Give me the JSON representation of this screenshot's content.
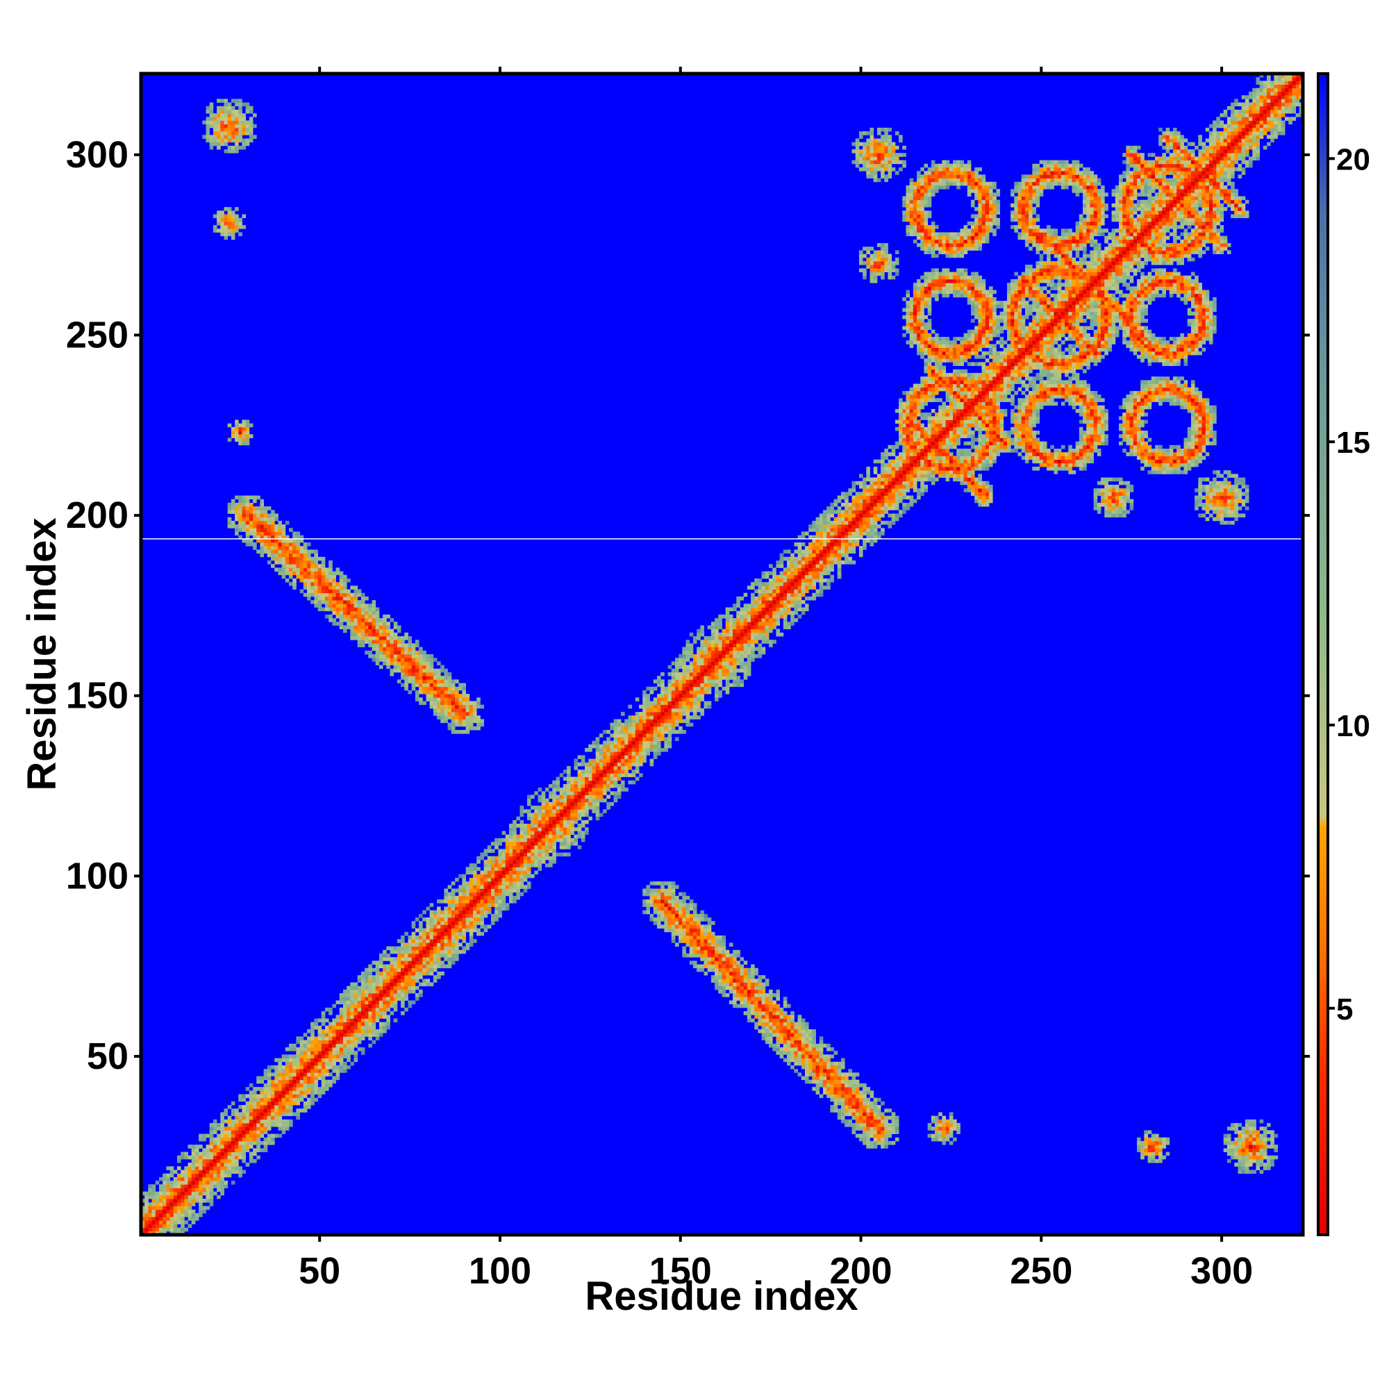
{
  "chart_data": {
    "type": "heatmap",
    "title": "",
    "xlabel": "Residue index",
    "ylabel": "Residue index",
    "n_residues": 322,
    "xlim": [
      1,
      322
    ],
    "ylim": [
      1,
      322
    ],
    "x_ticks": [
      50,
      100,
      150,
      200,
      250,
      300
    ],
    "y_ticks": [
      50,
      100,
      150,
      200,
      250,
      300
    ],
    "grid": false,
    "legend": "colorbar-right",
    "colorbar": {
      "ticks": [
        5,
        10,
        15,
        20
      ],
      "range": [
        1,
        21.5
      ],
      "stops": [
        {
          "value": 1,
          "color": "#e00000"
        },
        {
          "value": 4,
          "color": "#ff3000"
        },
        {
          "value": 6,
          "color": "#ff7000"
        },
        {
          "value": 8.2,
          "color": "#ffa500"
        },
        {
          "value": 8.4,
          "color": "#c8c880"
        },
        {
          "value": 12,
          "color": "#8fb98a"
        },
        {
          "value": 16,
          "color": "#6f9a9a"
        },
        {
          "value": 19,
          "color": "#4a72a8"
        },
        {
          "value": 21.5,
          "color": "#0000ff"
        }
      ]
    },
    "background_value": 21,
    "background_color": "#0000ff",
    "gap_row": 193.5,
    "contact_features": [
      {
        "kind": "band",
        "description": "diagonal self-contact band",
        "from": [
          1,
          1
        ],
        "to": [
          322,
          322
        ],
        "halfwidth": 8
      },
      {
        "kind": "blob",
        "description": "contact cluster",
        "center": [
          100,
          100
        ],
        "halfwidth": 5
      },
      {
        "kind": "blob",
        "description": "contact cluster",
        "center": [
          115,
          115
        ],
        "halfwidth": 10
      },
      {
        "kind": "blob",
        "description": "contact cluster",
        "center": [
          145,
          145
        ],
        "halfwidth": 7
      },
      {
        "kind": "blob",
        "description": "contact cluster",
        "center": [
          160,
          160
        ],
        "halfwidth": 10
      },
      {
        "kind": "band",
        "description": "antiparallel sheet contacts",
        "from": [
          30,
          200
        ],
        "to": [
          90,
          145
        ],
        "halfwidth": 6
      },
      {
        "kind": "band",
        "description": "antiparallel sheet contacts",
        "from": [
          145,
          93
        ],
        "to": [
          205,
          30
        ],
        "halfwidth": 6
      },
      {
        "kind": "blob",
        "description": "contact cluster",
        "center": [
          25,
          308
        ],
        "halfwidth": 8
      },
      {
        "kind": "blob",
        "description": "contact cluster",
        "center": [
          25,
          281
        ],
        "halfwidth": 5
      },
      {
        "kind": "blob",
        "description": "contact cluster",
        "center": [
          28,
          223
        ],
        "halfwidth": 4
      },
      {
        "kind": "blob",
        "description": "contact cluster",
        "center": [
          223,
          30
        ],
        "halfwidth": 5
      },
      {
        "kind": "blob",
        "description": "contact cluster",
        "center": [
          281,
          25
        ],
        "halfwidth": 5
      },
      {
        "kind": "blob",
        "description": "contact cluster",
        "center": [
          308,
          25
        ],
        "halfwidth": 8
      },
      {
        "kind": "blob",
        "description": "contact cluster",
        "center": [
          200,
          200
        ],
        "halfwidth": 8
      },
      {
        "kind": "ring",
        "description": "beta-barrel contact ring",
        "center": [
          225,
          225
        ],
        "halfwidth": 12
      },
      {
        "kind": "ring",
        "description": "beta-barrel contact ring",
        "center": [
          255,
          255
        ],
        "halfwidth": 13
      },
      {
        "kind": "ring",
        "description": "beta-barrel contact ring",
        "center": [
          285,
          285
        ],
        "halfwidth": 12
      },
      {
        "kind": "ring",
        "description": "beta-barrel contact ring",
        "center": [
          225,
          285
        ],
        "halfwidth": 10
      },
      {
        "kind": "ring",
        "description": "beta-barrel contact ring",
        "center": [
          285,
          225
        ],
        "halfwidth": 10
      },
      {
        "kind": "ring",
        "description": "beta-barrel contact ring",
        "center": [
          225,
          255
        ],
        "halfwidth": 10
      },
      {
        "kind": "ring",
        "description": "beta-barrel contact ring",
        "center": [
          255,
          225
        ],
        "halfwidth": 10
      },
      {
        "kind": "ring",
        "description": "beta-barrel contact ring",
        "center": [
          255,
          285
        ],
        "halfwidth": 10
      },
      {
        "kind": "ring",
        "description": "beta-barrel contact ring",
        "center": [
          285,
          255
        ],
        "halfwidth": 10
      },
      {
        "kind": "blob",
        "description": "contact cluster",
        "center": [
          205,
          300
        ],
        "halfwidth": 8
      },
      {
        "kind": "blob",
        "description": "contact cluster",
        "center": [
          300,
          205
        ],
        "halfwidth": 8
      },
      {
        "kind": "blob",
        "description": "contact cluster",
        "center": [
          205,
          270
        ],
        "halfwidth": 6
      },
      {
        "kind": "blob",
        "description": "contact cluster",
        "center": [
          270,
          205
        ],
        "halfwidth": 6
      },
      {
        "kind": "band",
        "description": "hairpin contacts",
        "from": [
          215,
          225
        ],
        "to": [
          235,
          205
        ],
        "halfwidth": 3
      },
      {
        "kind": "band",
        "description": "hairpin contacts",
        "from": [
          220,
          240
        ],
        "to": [
          240,
          220
        ],
        "halfwidth": 3
      },
      {
        "kind": "band",
        "description": "hairpin contacts",
        "from": [
          245,
          265
        ],
        "to": [
          265,
          245
        ],
        "halfwidth": 3
      },
      {
        "kind": "band",
        "description": "hairpin contacts",
        "from": [
          250,
          278
        ],
        "to": [
          278,
          250
        ],
        "halfwidth": 3
      },
      {
        "kind": "band",
        "description": "hairpin contacts",
        "from": [
          275,
          300
        ],
        "to": [
          300,
          275
        ],
        "halfwidth": 3
      },
      {
        "kind": "band",
        "description": "hairpin contacts",
        "from": [
          285,
          305
        ],
        "to": [
          305,
          285
        ],
        "halfwidth": 3
      }
    ]
  }
}
